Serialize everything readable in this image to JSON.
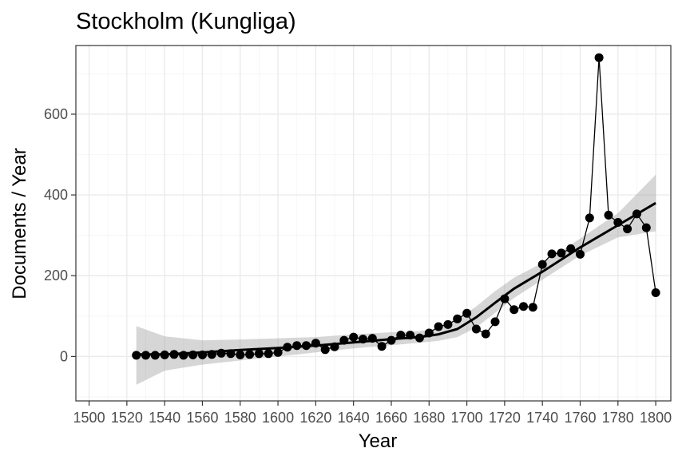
{
  "chart_data": {
    "type": "scatter",
    "title": "Stockholm (Kungliga)",
    "xlabel": "Year",
    "ylabel": "Documents / Year",
    "xlim": [
      1493,
      1808
    ],
    "ylim": [
      -110,
      770
    ],
    "x_ticks": [
      1500,
      1520,
      1540,
      1560,
      1580,
      1600,
      1620,
      1640,
      1660,
      1680,
      1700,
      1720,
      1740,
      1760,
      1780,
      1800
    ],
    "x_tick_labels": [
      "1500",
      "1520",
      "1540",
      "1560",
      "1580",
      "1600",
      "1620",
      "1640",
      "1660",
      "1680",
      "1700",
      "1720",
      "1740",
      "1760",
      "1780",
      "1800"
    ],
    "y_ticks": [
      0,
      200,
      400,
      600
    ],
    "y_tick_labels": [
      "0",
      "200",
      "400",
      "600"
    ],
    "grid": true,
    "legend": "none",
    "series": [
      {
        "style": "points-connected",
        "x": [
          1525,
          1530,
          1535,
          1540,
          1545,
          1550,
          1555,
          1560,
          1565,
          1570,
          1575,
          1580,
          1585,
          1590,
          1595,
          1600,
          1605,
          1610,
          1615,
          1620,
          1625,
          1630,
          1635,
          1640,
          1645,
          1650,
          1655,
          1660,
          1665,
          1670,
          1675,
          1680,
          1685,
          1690,
          1695,
          1700,
          1705,
          1710,
          1715,
          1720,
          1725,
          1730,
          1735,
          1740,
          1745,
          1750,
          1755,
          1760,
          1765,
          1770,
          1775,
          1780,
          1785,
          1790,
          1795,
          1800
        ],
        "y": [
          3,
          3,
          3,
          4,
          5,
          3,
          4,
          4,
          5,
          8,
          7,
          4,
          5,
          7,
          7,
          10,
          23,
          27,
          27,
          33,
          17,
          24,
          40,
          48,
          43,
          45,
          25,
          40,
          53,
          53,
          46,
          58,
          74,
          79,
          93,
          107,
          68,
          56,
          86,
          143,
          116,
          124,
          122,
          228,
          254,
          256,
          267,
          253,
          343,
          740,
          350,
          332,
          316,
          353,
          319,
          158
        ]
      },
      {
        "style": "smooth-fit",
        "x": [
          1525,
          1540,
          1560,
          1580,
          1600,
          1620,
          1640,
          1660,
          1675,
          1685,
          1695,
          1705,
          1715,
          1725,
          1740,
          1760,
          1780,
          1800
        ],
        "y": [
          5,
          5,
          10,
          16,
          21,
          27,
          35,
          43,
          48,
          55,
          68,
          97,
          133,
          168,
          210,
          270,
          325,
          380
        ],
        "lower": [
          -70,
          -35,
          -20,
          -10,
          0,
          10,
          20,
          28,
          34,
          39,
          48,
          72,
          108,
          145,
          190,
          250,
          295,
          310
        ],
        "upper": [
          75,
          50,
          40,
          42,
          45,
          48,
          55,
          60,
          63,
          70,
          92,
          124,
          162,
          195,
          232,
          292,
          355,
          450
        ]
      }
    ]
  }
}
